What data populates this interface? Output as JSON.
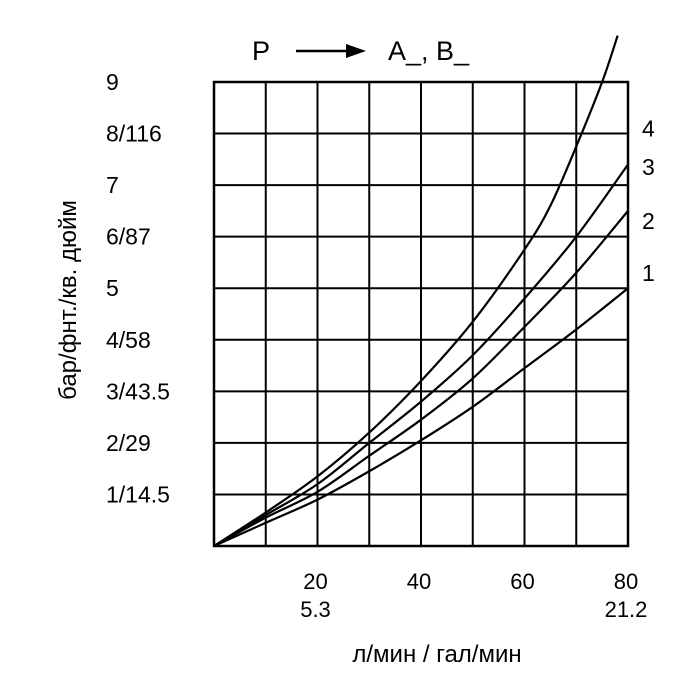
{
  "chart_data": {
    "type": "line",
    "title_parts": {
      "from": "P",
      "to": "A_, B_"
    },
    "xlabel": "л/мин / гал/мин",
    "ylabel": "бар/фнт./кв. дюйм",
    "xlim": [
      0,
      80
    ],
    "ylim": [
      0,
      9
    ],
    "grid": true,
    "x_ticks": [
      {
        "value": 20,
        "line1": "20",
        "line2": "5.3"
      },
      {
        "value": 40,
        "line1": "40",
        "line2": ""
      },
      {
        "value": 60,
        "line1": "60",
        "line2": ""
      },
      {
        "value": 80,
        "line1": "80",
        "line2": "21.2"
      }
    ],
    "y_ticks": [
      {
        "value": 1,
        "label": "1/14.5"
      },
      {
        "value": 2,
        "label": "2/29"
      },
      {
        "value": 3,
        "label": "3/43.5"
      },
      {
        "value": 4,
        "label": "4/58"
      },
      {
        "value": 5,
        "label": "5"
      },
      {
        "value": 6,
        "label": "6/87"
      },
      {
        "value": 7,
        "label": "7"
      },
      {
        "value": 8,
        "label": "8/116"
      },
      {
        "value": 9,
        "label": "9"
      }
    ],
    "curve_labels": [
      "1",
      "2",
      "3",
      "4"
    ],
    "series": [
      {
        "name": "1",
        "points": [
          [
            0,
            0
          ],
          [
            10,
            0.45
          ],
          [
            20,
            0.9
          ],
          [
            30,
            1.45
          ],
          [
            40,
            2.05
          ],
          [
            50,
            2.7
          ],
          [
            60,
            3.45
          ],
          [
            70,
            4.2
          ],
          [
            80,
            5.0
          ]
        ]
      },
      {
        "name": "2",
        "points": [
          [
            0,
            0
          ],
          [
            10,
            0.55
          ],
          [
            20,
            1.05
          ],
          [
            30,
            1.75
          ],
          [
            40,
            2.45
          ],
          [
            50,
            3.25
          ],
          [
            60,
            4.25
          ],
          [
            70,
            5.3
          ],
          [
            80,
            6.5
          ]
        ]
      },
      {
        "name": "3",
        "points": [
          [
            0,
            0
          ],
          [
            10,
            0.6
          ],
          [
            20,
            1.2
          ],
          [
            30,
            2.0
          ],
          [
            40,
            2.8
          ],
          [
            50,
            3.7
          ],
          [
            60,
            4.8
          ],
          [
            70,
            6.0
          ],
          [
            80,
            7.4
          ]
        ]
      },
      {
        "name": "4",
        "points": [
          [
            0,
            0
          ],
          [
            10,
            0.65
          ],
          [
            20,
            1.35
          ],
          [
            30,
            2.2
          ],
          [
            40,
            3.2
          ],
          [
            50,
            4.35
          ],
          [
            60,
            5.75
          ],
          [
            65,
            6.6
          ],
          [
            70,
            7.75
          ],
          [
            75,
            9.0
          ],
          [
            78,
            9.9
          ]
        ]
      }
    ]
  }
}
